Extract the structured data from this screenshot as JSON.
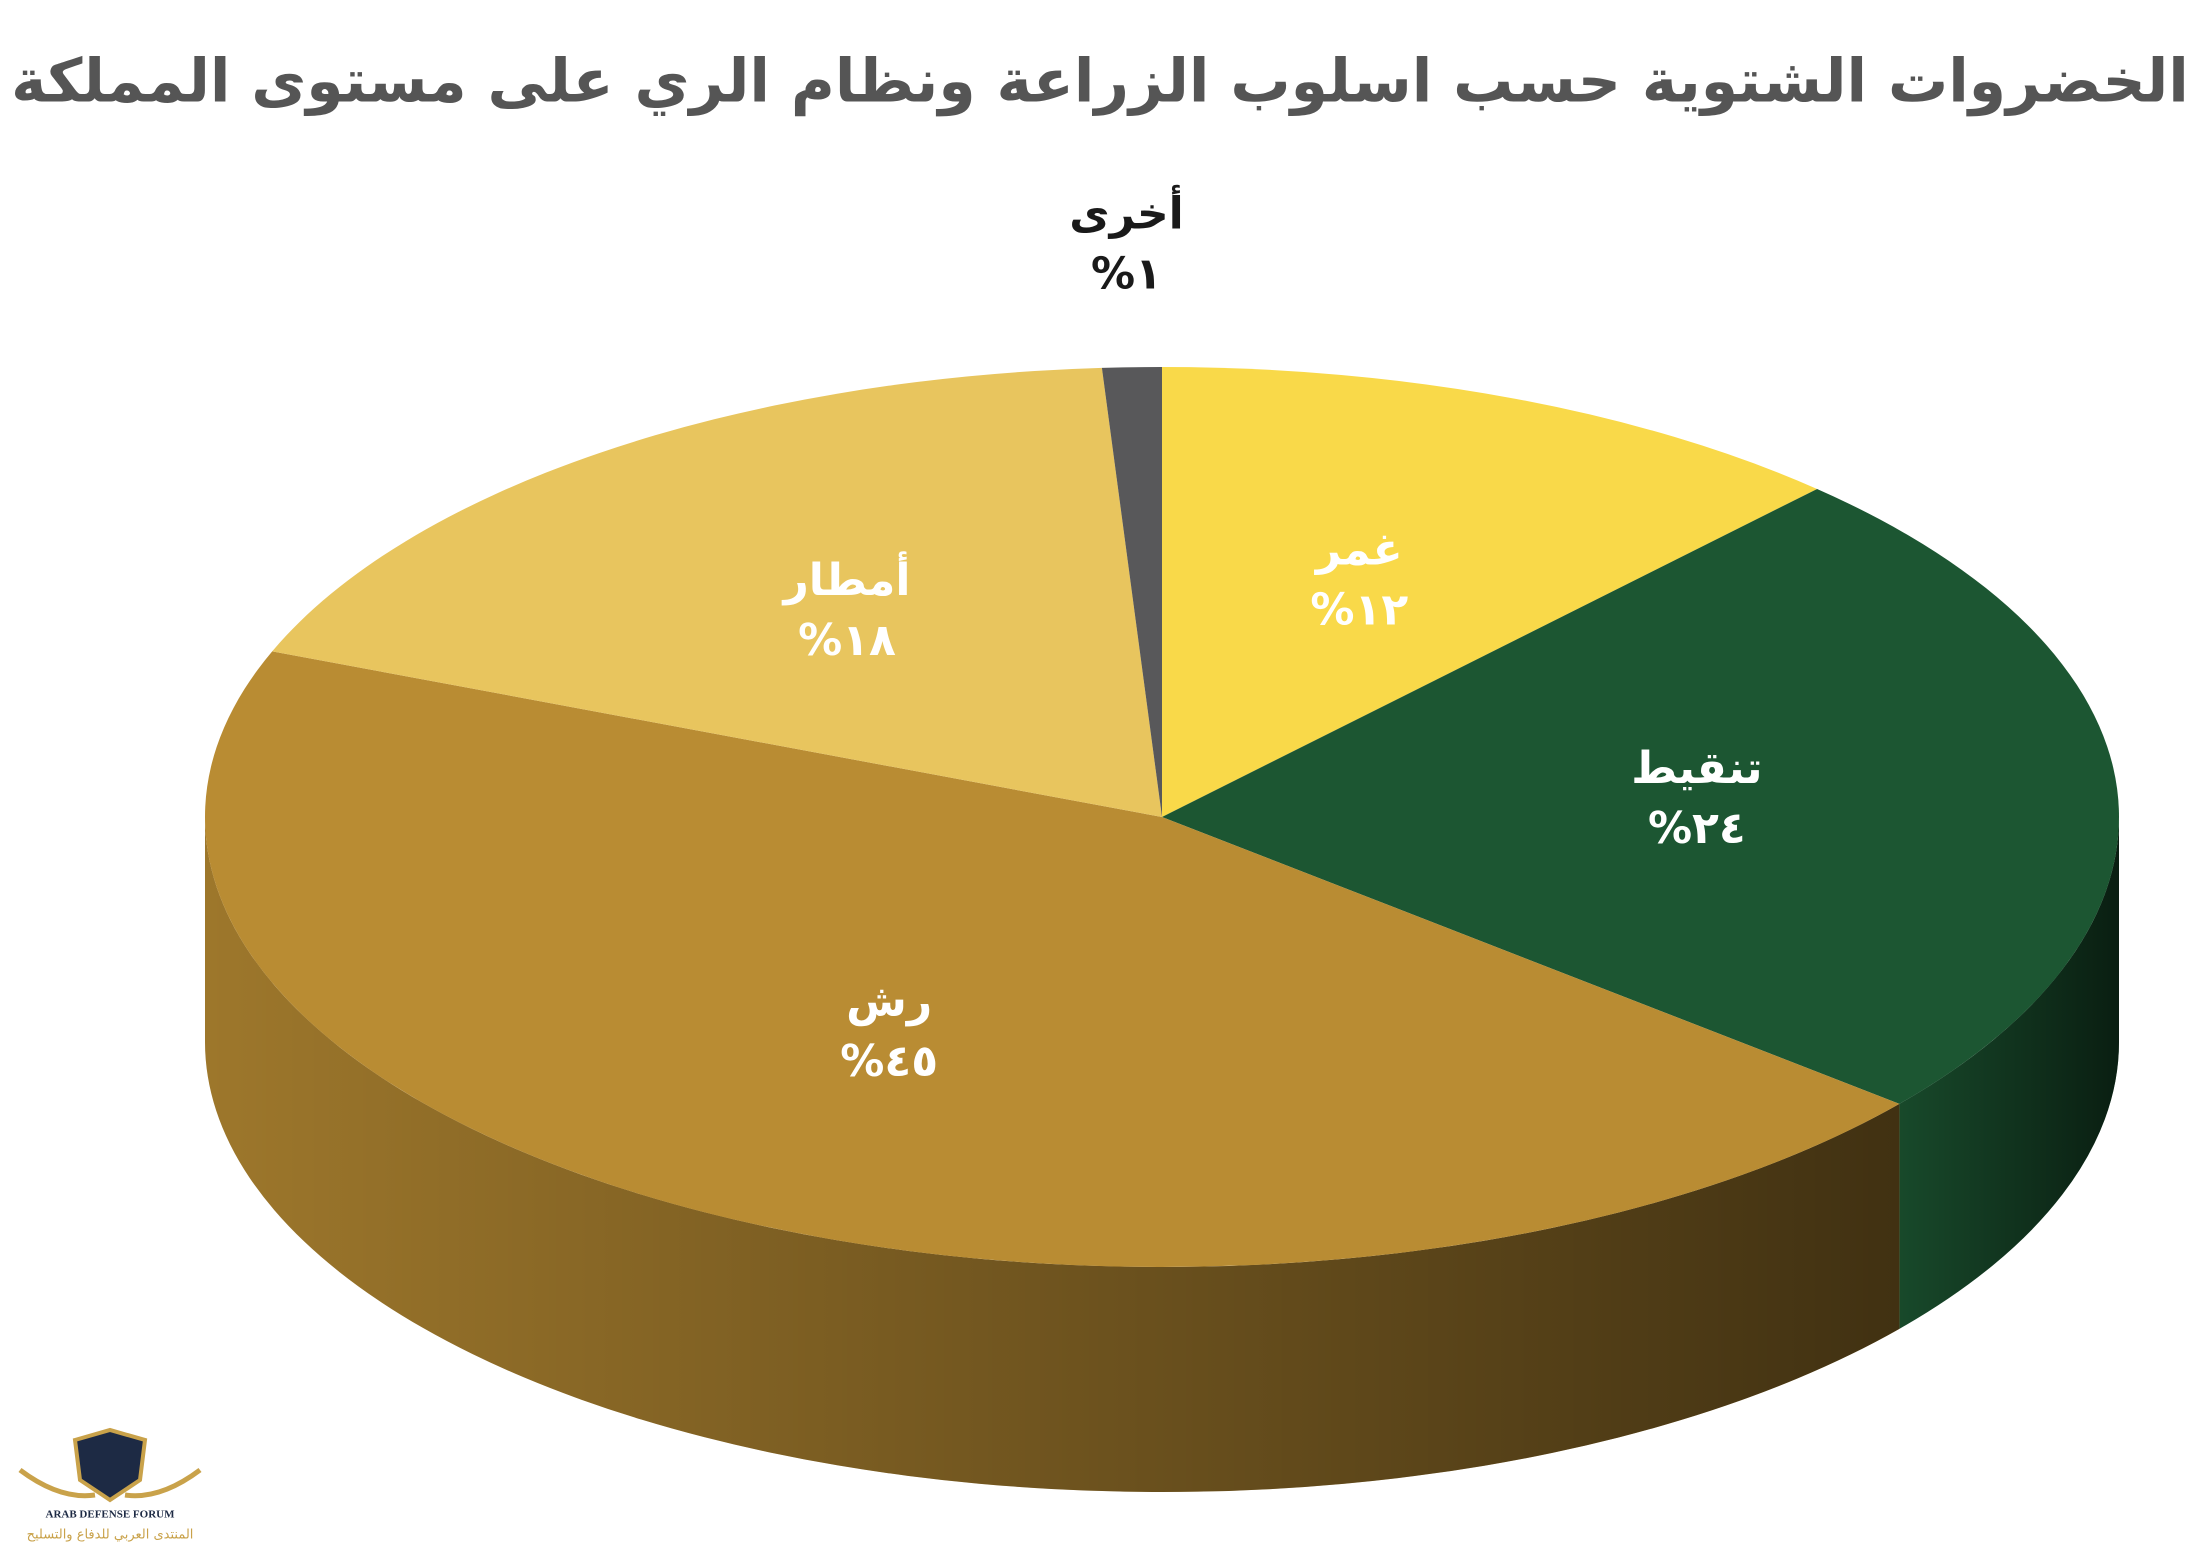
{
  "chart_data": {
    "type": "pie3d",
    "title": "الخضروات الشتوية حسب اسلوب الزراعة ونظام الري على مستوى المملكة",
    "categories": [
      "غمر",
      "تنقيط",
      "رش",
      "أمطار",
      "أخرى"
    ],
    "values": [
      12,
      24,
      45,
      18,
      1
    ],
    "value_labels": [
      "%١٢",
      "%٢٤",
      "%٤٥",
      "%١٨",
      "%١"
    ],
    "colors": [
      "#f9d949",
      "#1c5632",
      "#b98c33",
      "#e8c55e",
      "#58585a"
    ],
    "label_colors": [
      "#ffffff",
      "#ffffff",
      "#ffffff",
      "#ffffff",
      "#1a1a1a"
    ]
  },
  "logo": {
    "name": "ARAB DEFENSE FORUM",
    "name_ar": "المنتدى العربي للدفاع والتسليح"
  }
}
